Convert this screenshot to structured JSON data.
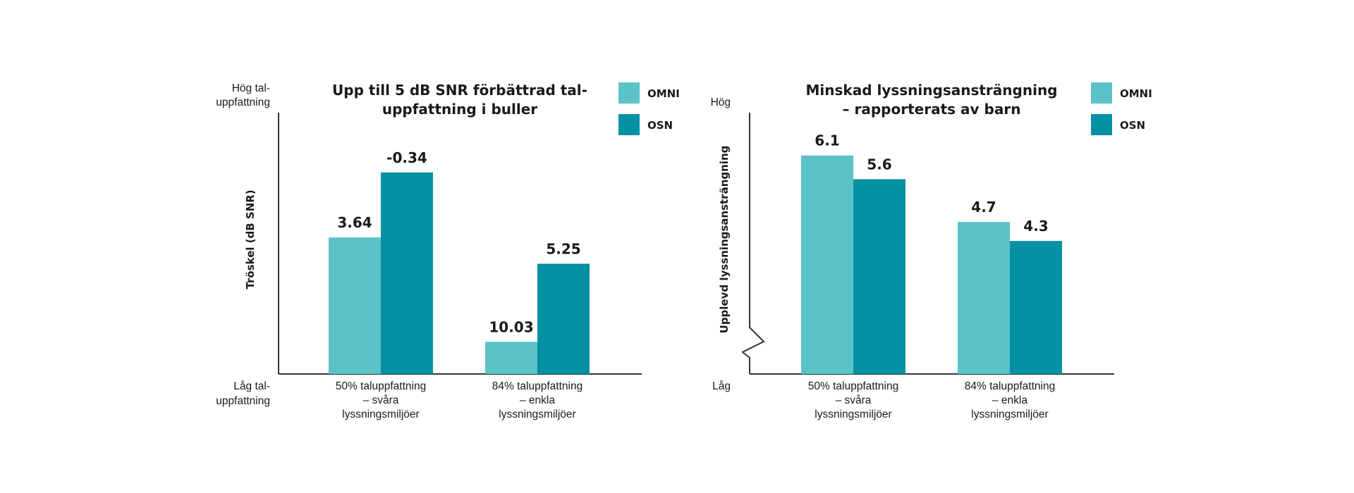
{
  "colors": {
    "omni": "#5BC2C8",
    "osn": "#0391A3",
    "axis": "#333333",
    "text": "#1a1a1a"
  },
  "chart_data": [
    {
      "type": "bar",
      "title": "Upp till 5 dB SNR förbättrad tal-uppfattning i buller",
      "title_lines": [
        "Upp till 5 dB SNR förbättrad tal-",
        "uppfattning i buller"
      ],
      "ylabel": "Tröskel (dB SNR)",
      "y_high_label": [
        "Hög tal-",
        "uppfattning"
      ],
      "y_low_label": [
        "Låg tal-",
        "uppfattning"
      ],
      "y_inverted": true,
      "ylim": [
        12,
        -4
      ],
      "categories": [
        "50% taluppfattning – svåra lyssningsmiljöer",
        "84% taluppfattning – enkla lyssningsmiljöer"
      ],
      "category_lines": [
        [
          "50% taluppfattning",
          "– svåra",
          "lyssningsmiljöer"
        ],
        [
          "84% taluppfattning",
          "– enkla",
          "lyssningsmiljöer"
        ]
      ],
      "series": [
        {
          "name": "OMNI",
          "values": [
            3.64,
            10.03
          ],
          "labels": [
            "3.64",
            "10.03"
          ]
        },
        {
          "name": "OSN",
          "values": [
            -0.34,
            5.25
          ],
          "labels": [
            "-0.34",
            "5.25"
          ]
        }
      ],
      "legend": [
        "OMNI",
        "OSN"
      ],
      "legend_position": "top-right"
    },
    {
      "type": "bar",
      "title": "Minskad lyssningsansträngning – rapporterats av barn",
      "title_lines": [
        "Minskad lyssningsansträngning",
        "– rapporterats av barn"
      ],
      "ylabel": "Upplevd lyssningsansträngning",
      "y_high_label": [
        "Hög"
      ],
      "y_low_label": [
        "Låg"
      ],
      "y_axis_break": true,
      "ylim": [
        1.5,
        7
      ],
      "categories": [
        "50% taluppfattning – svåra lyssningsmiljöer",
        "84% taluppfattning – enkla lyssningsmiljöer"
      ],
      "category_lines": [
        [
          "50% taluppfattning",
          "– svåra",
          "lyssningsmiljöer"
        ],
        [
          "84% taluppfattning",
          "– enkla",
          "lyssningsmiljöer"
        ]
      ],
      "series": [
        {
          "name": "OMNI",
          "values": [
            6.1,
            4.7
          ],
          "labels": [
            "6.1",
            "4.7"
          ]
        },
        {
          "name": "OSN",
          "values": [
            5.6,
            4.3
          ],
          "labels": [
            "5.6",
            "4.3"
          ]
        }
      ],
      "legend": [
        "OMNI",
        "OSN"
      ],
      "legend_position": "top-right"
    }
  ]
}
